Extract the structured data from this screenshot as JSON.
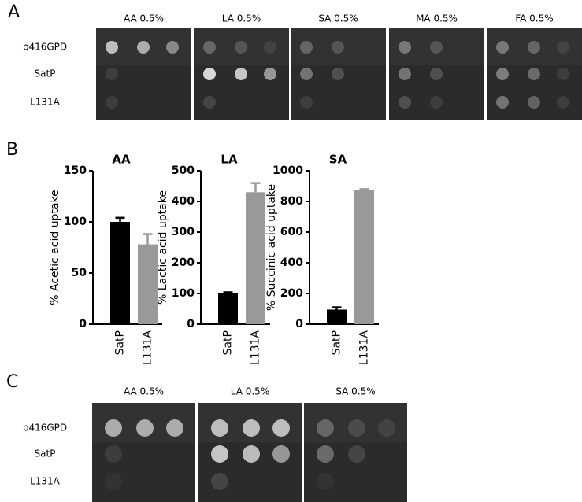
{
  "panel_labels": [
    "A",
    "B",
    "C"
  ],
  "panel_a": {
    "columns": [
      "AA 0.5%",
      "LA 0.5%",
      "SA 0.5%",
      "MA 0.5%",
      "FA 0.5%"
    ],
    "rows": [
      "p416GPD",
      "SatP",
      "L131A"
    ]
  },
  "chart_data": [
    {
      "type": "bar",
      "title": "AA",
      "y_label": "% Acetic acid uptake",
      "categories": [
        "SatP",
        "L131A"
      ],
      "values": [
        100,
        78
      ],
      "errors": [
        4,
        10
      ],
      "colors": [
        "#000000",
        "#999999"
      ],
      "ylim": [
        0,
        150
      ],
      "yticks": [
        0,
        50,
        100,
        150
      ]
    },
    {
      "type": "bar",
      "title": "LA",
      "y_label": "% Lactic acid uptake",
      "categories": [
        "SatP",
        "L131A"
      ],
      "values": [
        100,
        430
      ],
      "errors": [
        4,
        30
      ],
      "colors": [
        "#000000",
        "#999999"
      ],
      "ylim": [
        0,
        500
      ],
      "yticks": [
        0,
        100,
        200,
        300,
        400,
        500
      ]
    },
    {
      "type": "bar",
      "title": "SA",
      "y_label": "% Succinic acid uptake",
      "categories": [
        "SatP",
        "L131A"
      ],
      "values": [
        95,
        875
      ],
      "errors": [
        15,
        5
      ],
      "colors": [
        "#000000",
        "#999999"
      ],
      "ylim": [
        0,
        1000
      ],
      "yticks": [
        0,
        200,
        400,
        600,
        800,
        1000
      ]
    }
  ],
  "panel_c": {
    "columns": [
      "AA 0.5%",
      "LA 0.5%",
      "SA 0.5%"
    ],
    "rows": [
      "p416GPD",
      "SatP",
      "L131A"
    ]
  }
}
